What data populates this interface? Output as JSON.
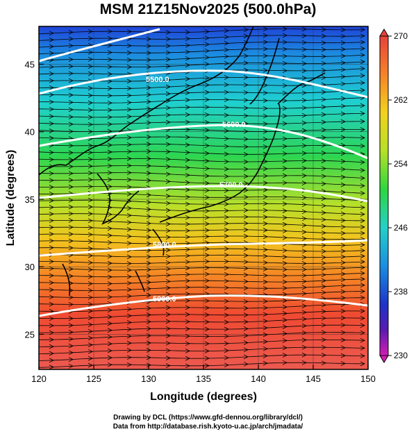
{
  "title": "MSM 21Z15Nov2025 (500.0hPa)",
  "xlabel": "Longitude (degrees)",
  "ylabel": "Latitude  (degrees)",
  "x_ticks": [
    "120",
    "125",
    "130",
    "135",
    "140",
    "145",
    "150"
  ],
  "y_ticks": [
    "25",
    "30",
    "35",
    "40",
    "45"
  ],
  "colorbar": {
    "ticks": [
      "270",
      "262",
      "254",
      "246",
      "238",
      "230"
    ],
    "min": 230,
    "max": 270,
    "unit": ""
  },
  "contours": [
    {
      "label": "5500.0"
    },
    {
      "label": "5600.0"
    },
    {
      "label": "5700.0"
    },
    {
      "label": "5800.0"
    },
    {
      "label": "5900.0"
    }
  ],
  "credits": {
    "line1": "Drawing by DCL (https://www.gfd-dennou.org/library/dcl/)",
    "line2": "Data from http://database.rish.kyoto-u.ac.jp/arch/jmadata/"
  },
  "colors": {
    "warm": "#e8483a",
    "orange": "#f5a623",
    "yellow": "#e6e61e",
    "green": "#2ecc40",
    "cyan": "#22c6d6",
    "blue": "#1a5fd8",
    "purple": "#6a1cb0"
  }
}
